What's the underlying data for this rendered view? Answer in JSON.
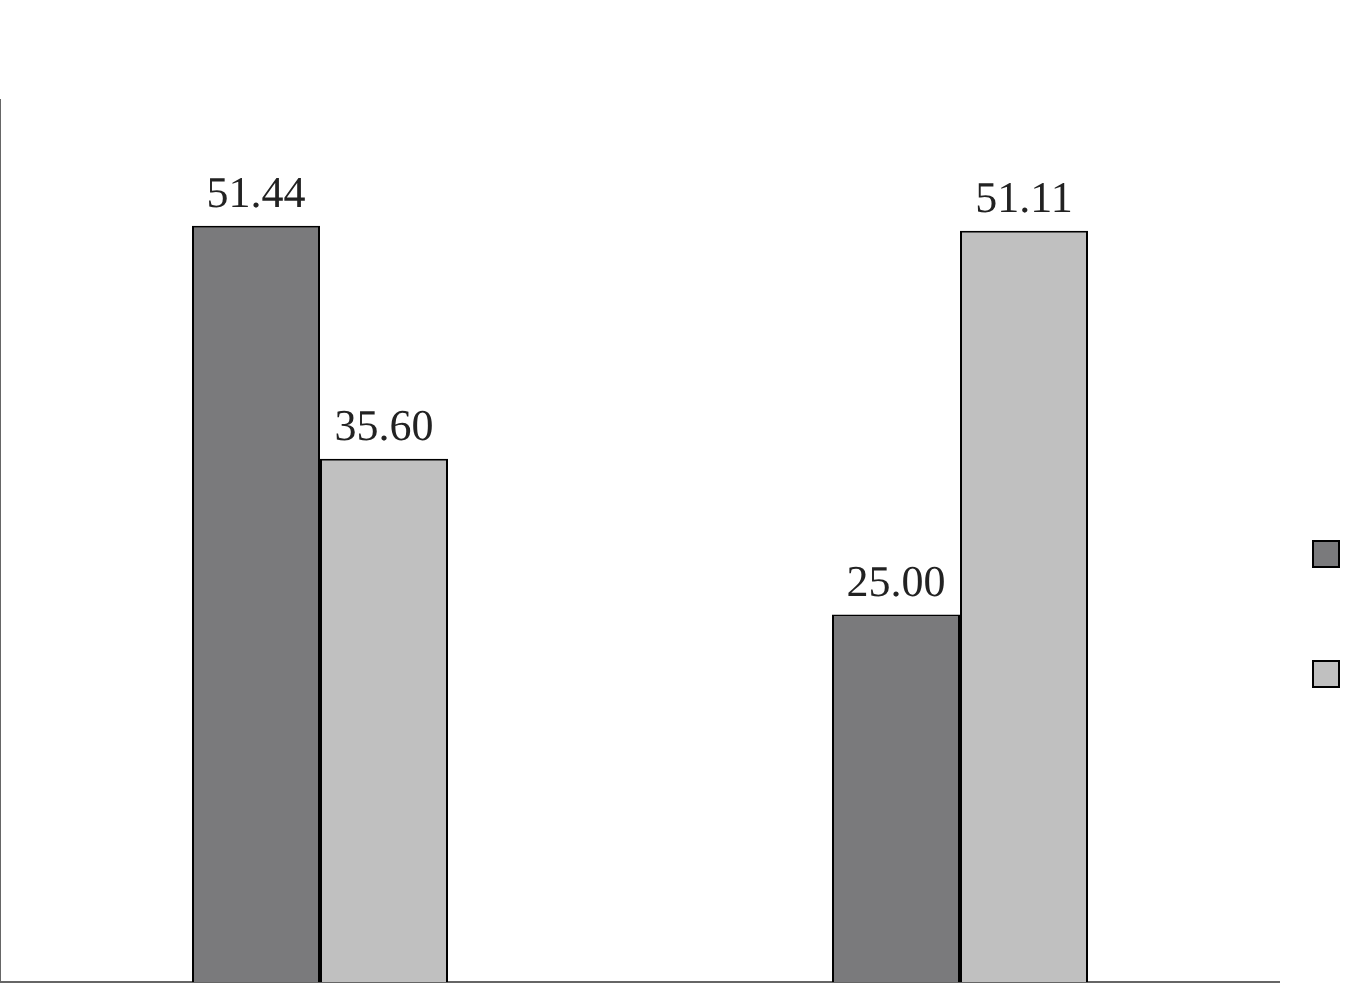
{
  "chart_data": {
    "type": "bar",
    "categories": [
      null,
      null
    ],
    "series": [
      {
        "color": "#7a7a7c",
        "values": [
          51.44,
          25.0
        ],
        "value_labels": [
          "51.44",
          "25.00"
        ]
      },
      {
        "color": "#c0c0c0",
        "values": [
          35.6,
          51.11
        ],
        "value_labels": [
          "35.60",
          "51.11"
        ]
      }
    ],
    "tick_labels": false,
    "grid": false
  }
}
